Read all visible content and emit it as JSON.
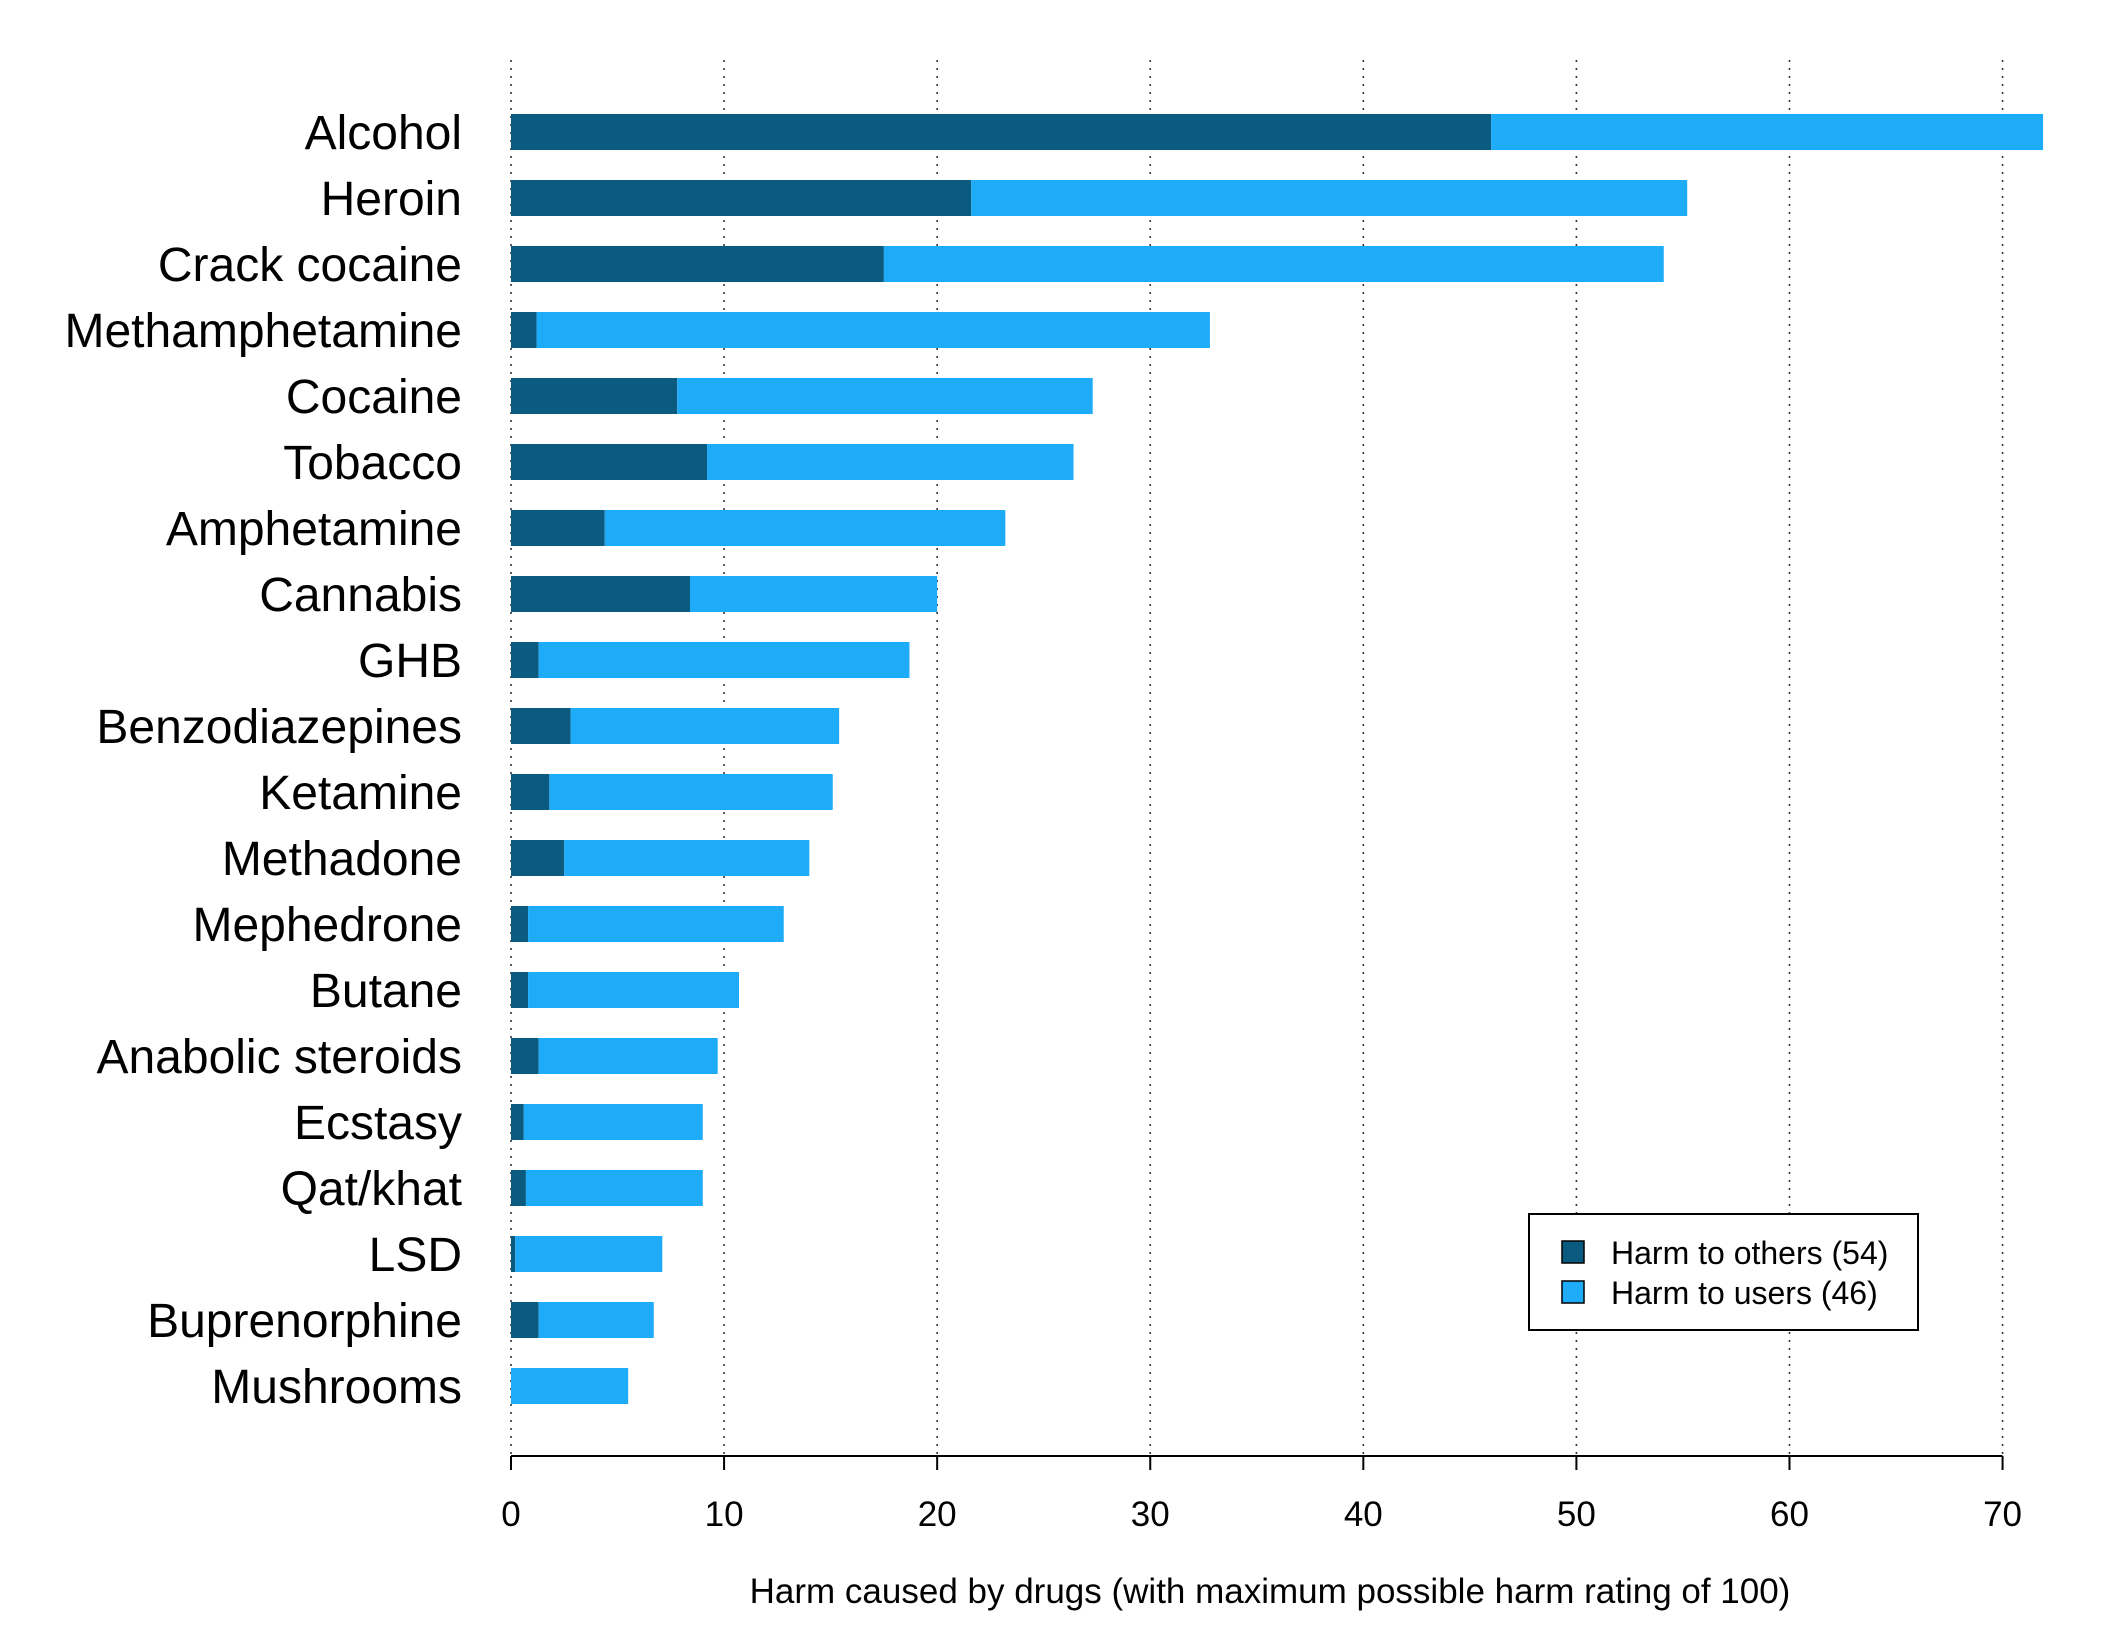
{
  "chart_data": {
    "type": "bar",
    "orientation": "horizontal",
    "stacked": true,
    "title": "",
    "xlabel": "Harm caused by drugs (with maximum possible harm rating of 100)",
    "ylabel": "",
    "xlim": [
      0,
      72
    ],
    "xticks": [
      "0",
      "10",
      "20",
      "30",
      "40",
      "50",
      "60",
      "70"
    ],
    "grid": "vertical dotted",
    "legend": "bottom-right",
    "categories": [
      "Alcohol",
      "Heroin",
      "Crack cocaine",
      "Methamphetamine",
      "Cocaine",
      "Tobacco",
      "Amphetamine",
      "Cannabis",
      "GHB",
      "Benzodiazepines",
      "Ketamine",
      "Methadone",
      "Mephedrone",
      "Butane",
      "Anabolic steroids",
      "Ecstasy",
      "Qat/khat",
      "LSD",
      "Buprenorphine",
      "Mushrooms"
    ],
    "series": [
      {
        "name": "Harm to others (54)",
        "color": "#0b5a7f",
        "values": [
          46,
          21.6,
          17.5,
          1.2,
          7.8,
          9.2,
          4.4,
          8.4,
          1.3,
          2.8,
          1.8,
          2.5,
          0.8,
          0.8,
          1.3,
          0.6,
          0.7,
          0.2,
          1.3,
          0.0
        ]
      },
      {
        "name": "Harm to users (46)",
        "color": "#1eacf9",
        "values": [
          25.9,
          33.6,
          36.6,
          31.6,
          19.5,
          17.2,
          18.8,
          11.6,
          17.4,
          12.6,
          13.3,
          11.5,
          12.0,
          9.9,
          8.4,
          8.4,
          8.3,
          6.9,
          5.4,
          5.5
        ]
      }
    ]
  }
}
